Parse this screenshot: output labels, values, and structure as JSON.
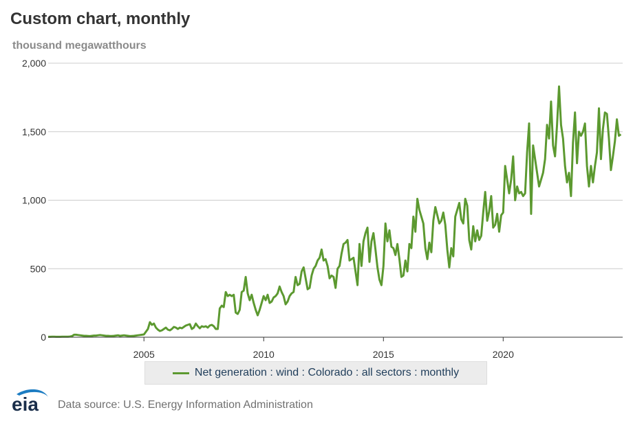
{
  "header": {
    "title": "Custom chart, monthly",
    "units": "thousand megawatthours"
  },
  "colors": {
    "series": "#5c9930",
    "grid": "#cccccc",
    "axis": "#333333",
    "logo_blue": "#1c7cc2",
    "logo_text": "#1a2e4a"
  },
  "logo": {
    "text": "eia"
  },
  "footer": {
    "source": "Data source: U.S. Energy Information Administration"
  },
  "chart_data": {
    "type": "line",
    "title": "Custom chart, monthly",
    "ylabel": "thousand megawatthours",
    "xlabel": "",
    "ylim": [
      0,
      2000
    ],
    "xlim": [
      2001.0,
      2024.99
    ],
    "yticks": [
      0,
      500,
      1000,
      1500,
      2000
    ],
    "ytick_labels": [
      "0",
      "500",
      "1,000",
      "1,500",
      "2,000"
    ],
    "xticks": [
      2005,
      2010,
      2015,
      2020
    ],
    "xtick_labels": [
      "2005",
      "2010",
      "2015",
      "2020"
    ],
    "grid": true,
    "legend_position": "bottom-center",
    "series": [
      {
        "name": "Net generation : wind : Colorado : all sectors : monthly",
        "x_start": 2001.0,
        "step": 0.08333,
        "values": [
          3,
          3,
          4,
          4,
          3,
          3,
          3,
          4,
          4,
          4,
          4,
          5,
          8,
          18,
          18,
          16,
          14,
          12,
          10,
          10,
          9,
          8,
          10,
          12,
          12,
          14,
          16,
          14,
          12,
          10,
          10,
          9,
          9,
          10,
          12,
          14,
          10,
          12,
          14,
          12,
          10,
          8,
          9,
          10,
          12,
          14,
          16,
          18,
          20,
          40,
          60,
          110,
          90,
          100,
          70,
          55,
          45,
          50,
          60,
          70,
          55,
          50,
          60,
          75,
          70,
          60,
          70,
          65,
          75,
          85,
          90,
          95,
          60,
          70,
          100,
          80,
          65,
          80,
          75,
          80,
          70,
          85,
          90,
          80,
          60,
          60,
          210,
          230,
          220,
          330,
          300,
          310,
          300,
          310,
          180,
          170,
          200,
          330,
          340,
          440,
          320,
          270,
          310,
          250,
          200,
          160,
          200,
          250,
          300,
          270,
          310,
          250,
          260,
          290,
          300,
          320,
          370,
          330,
          300,
          240,
          260,
          300,
          320,
          330,
          440,
          380,
          390,
          480,
          510,
          430,
          350,
          360,
          450,
          500,
          520,
          560,
          580,
          640,
          560,
          570,
          520,
          430,
          450,
          440,
          360,
          500,
          520,
          610,
          680,
          690,
          710,
          560,
          570,
          580,
          480,
          380,
          680,
          520,
          700,
          760,
          800,
          550,
          700,
          760,
          640,
          510,
          420,
          380,
          520,
          830,
          700,
          780,
          660,
          650,
          600,
          680,
          570,
          440,
          450,
          560,
          480,
          680,
          650,
          880,
          770,
          1010,
          930,
          880,
          830,
          650,
          570,
          690,
          620,
          850,
          950,
          890,
          830,
          850,
          910,
          820,
          640,
          510,
          650,
          590,
          880,
          930,
          980,
          860,
          830,
          1010,
          960,
          710,
          640,
          810,
          700,
          780,
          710,
          740,
          910,
          1060,
          850,
          920,
          1030,
          800,
          820,
          900,
          770,
          890,
          910,
          1250,
          1150,
          1050,
          1150,
          1320,
          1000,
          1100,
          1050,
          1060,
          1030,
          1050,
          1350,
          1560,
          900,
          1400,
          1300,
          1200,
          1100,
          1150,
          1200,
          1300,
          1550,
          1450,
          1720,
          1400,
          1320,
          1550,
          1830,
          1550,
          1450,
          1250,
          1130,
          1200,
          1030,
          1420,
          1640,
          1270,
          1500,
          1470,
          1500,
          1560,
          1250,
          1100,
          1250,
          1130,
          1250,
          1350,
          1670,
          1300,
          1520,
          1640,
          1630,
          1450,
          1220,
          1320,
          1430,
          1590,
          1470,
          1480
        ]
      }
    ]
  }
}
